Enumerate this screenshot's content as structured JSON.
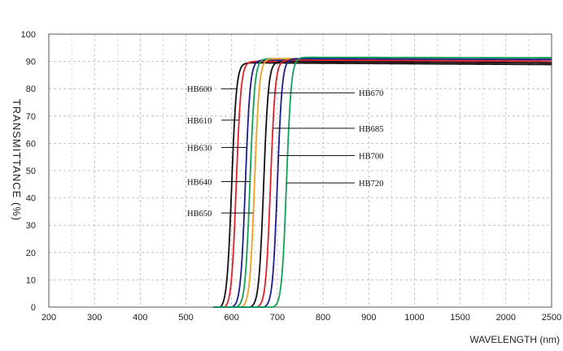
{
  "chart_data": {
    "type": "line",
    "xlabel": "WAVELENGTH (nm)",
    "ylabel": "TRANSMITTANCE (%)",
    "x_ticks": [
      "200",
      "300",
      "400",
      "500",
      "600",
      "700",
      "800",
      "900",
      "1000",
      "1500",
      "2000",
      "2500"
    ],
    "y_ticks": [
      "0",
      "10",
      "20",
      "30",
      "40",
      "50",
      "60",
      "70",
      "80",
      "90",
      "100"
    ],
    "ylim": [
      0,
      100
    ],
    "grid": true,
    "series": [
      {
        "name": "HB600",
        "color": "#111111",
        "cut_on_nm": 600,
        "plateau": 89.5,
        "onset_nm": 575
      },
      {
        "name": "HB610",
        "color": "#e0202a",
        "cut_on_nm": 610,
        "plateau": 90.0,
        "onset_nm": 585
      },
      {
        "name": "HB630",
        "color": "#1c1c8c",
        "cut_on_nm": 630,
        "plateau": 90.5,
        "onset_nm": 600
      },
      {
        "name": "HB640",
        "color": "#11a057",
        "cut_on_nm": 640,
        "plateau": 91.0,
        "onset_nm": 610
      },
      {
        "name": "HB650",
        "color": "#f0a020",
        "cut_on_nm": 650,
        "plateau": 91.0,
        "onset_nm": 620
      },
      {
        "name": "HB670",
        "color": "#111111",
        "cut_on_nm": 670,
        "plateau": 90.0,
        "onset_nm": 640
      },
      {
        "name": "HB685",
        "color": "#e0202a",
        "cut_on_nm": 685,
        "plateau": 90.5,
        "onset_nm": 655
      },
      {
        "name": "HB700",
        "color": "#1c1c8c",
        "cut_on_nm": 700,
        "plateau": 91.0,
        "onset_nm": 670
      },
      {
        "name": "HB720",
        "color": "#11a057",
        "cut_on_nm": 720,
        "plateau": 91.5,
        "onset_nm": 690
      }
    ],
    "labels": [
      {
        "text": "HB600",
        "series": "HB600",
        "side": "left",
        "y": 80
      },
      {
        "text": "HB610",
        "series": "HB610",
        "side": "left",
        "y": 68.5
      },
      {
        "text": "HB630",
        "series": "HB630",
        "side": "left",
        "y": 58.5
      },
      {
        "text": "HB640",
        "series": "HB640",
        "side": "left",
        "y": 46
      },
      {
        "text": "HB650",
        "series": "HB650",
        "side": "left",
        "y": 34.5
      },
      {
        "text": "HB670",
        "series": "HB670",
        "side": "right",
        "y": 78.5
      },
      {
        "text": "HB685",
        "series": "HB685",
        "side": "right",
        "y": 65.5
      },
      {
        "text": "HB700",
        "series": "HB700",
        "side": "right",
        "y": 55.5
      },
      {
        "text": "HB720",
        "series": "HB720",
        "side": "right",
        "y": 45.5
      }
    ]
  }
}
